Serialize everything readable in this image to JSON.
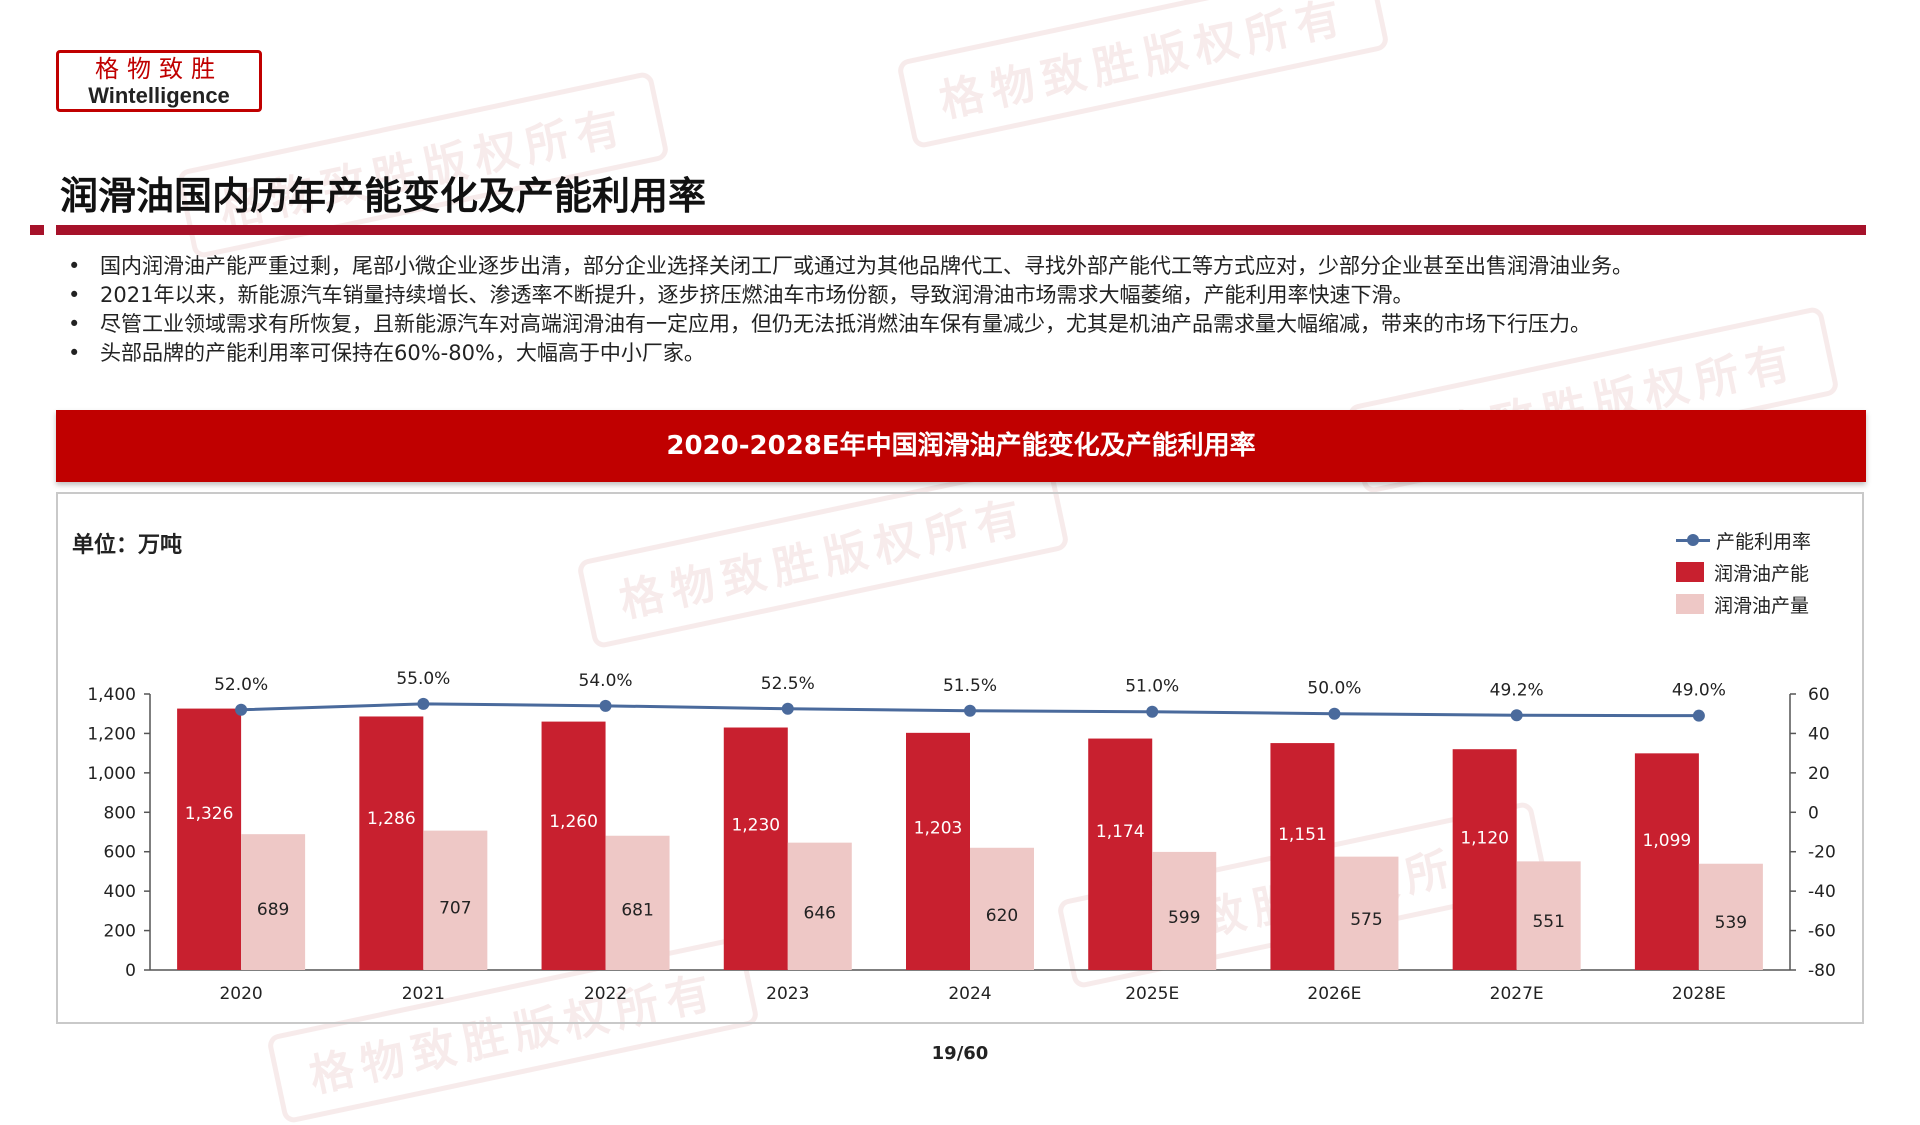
{
  "logo": {
    "cn": "格物致胜",
    "en": "Wintelligence"
  },
  "watermark": "格物致胜版权所有",
  "title": "润滑油国内历年产能变化及产能利用率",
  "bullets": [
    "国内润滑油产能严重过剩，尾部小微企业逐步出清，部分企业选择关闭工厂或通过为其他品牌代工、寻找外部产能代工等方式应对，少部分企业甚至出售润滑油业务。",
    "2021年以来，新能源汽车销量持续增长、渗透率不断提升，逐步挤压燃油车市场份额，导致润滑油市场需求大幅萎缩，产能利用率快速下滑。",
    "尽管工业领域需求有所恢复，且新能源汽车对高端润滑油有一定应用，但仍无法抵消燃油车保有量减少，尤其是机油产品需求量大幅缩减，带来的市场下行压力。",
    "头部品牌的产能利用率可保持在60%-80%，大幅高于中小厂家。"
  ],
  "page_number": "19/60",
  "colors": {
    "brand_red": "#c00000",
    "capacity": "#c8202f",
    "output": "#eec8c6",
    "utilization": "#4a6a9c"
  },
  "chart_data": {
    "type": "bar",
    "title": "2020-2028E年中国润滑油产能变化及产能利用率",
    "unit_label": "单位：万吨",
    "categories": [
      "2020",
      "2021",
      "2022",
      "2023",
      "2024",
      "2025E",
      "2026E",
      "2027E",
      "2028E"
    ],
    "series": [
      {
        "name": "润滑油产能",
        "type": "bar",
        "axis": "left",
        "values": [
          1326,
          1286,
          1260,
          1230,
          1203,
          1174,
          1151,
          1120,
          1099
        ],
        "labels": [
          "1,326",
          "1,286",
          "1,260",
          "1,230",
          "1,203",
          "1,174",
          "1,151",
          "1,120",
          "1,099"
        ]
      },
      {
        "name": "润滑油产量",
        "type": "bar",
        "axis": "left",
        "values": [
          689,
          707,
          681,
          646,
          620,
          599,
          575,
          551,
          539
        ],
        "labels": [
          "689",
          "707",
          "681",
          "646",
          "620",
          "599",
          "575",
          "551",
          "539"
        ]
      },
      {
        "name": "产能利用率",
        "type": "line",
        "axis": "right",
        "values": [
          52.0,
          55.0,
          54.0,
          52.5,
          51.5,
          51.0,
          50.0,
          49.2,
          49.0
        ],
        "labels": [
          "52.0%",
          "55.0%",
          "54.0%",
          "52.5%",
          "51.5%",
          "51.0%",
          "50.0%",
          "49.2%",
          "49.0%"
        ]
      }
    ],
    "legend": [
      "产能利用率",
      "润滑油产能",
      "润滑油产量"
    ],
    "legend_position": "top-right",
    "y_left": {
      "min": 0,
      "max": 1400,
      "ticks": [
        "0",
        "200",
        "400",
        "600",
        "800",
        "1,000",
        "1,200",
        "1,400"
      ]
    },
    "y_right": {
      "min": -80,
      "max": 60,
      "ticks": [
        "-80",
        "-60",
        "-40",
        "-20",
        "0",
        "20",
        "40",
        "60"
      ]
    },
    "grid": false
  }
}
